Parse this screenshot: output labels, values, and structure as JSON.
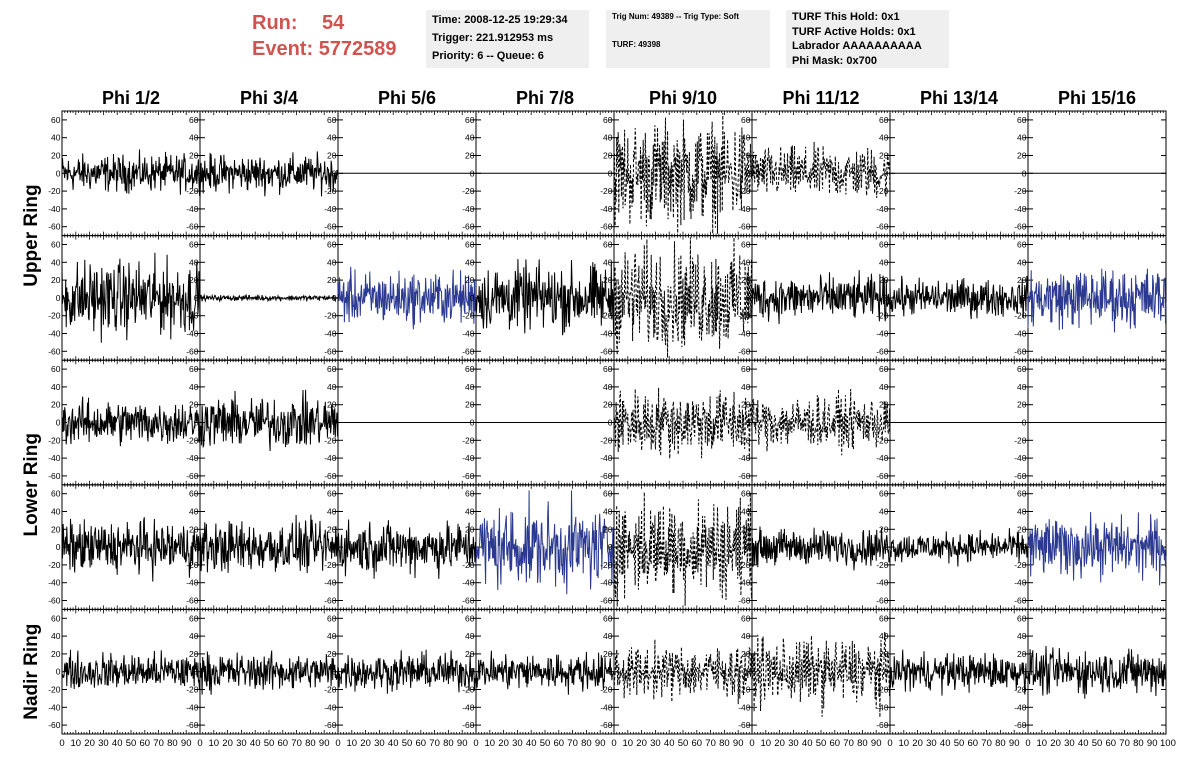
{
  "header": {
    "run_label": "Run:",
    "run_value": "54",
    "event_label": "Event:",
    "event_value": "5772589",
    "box1": [
      "Time: 2008-12-25 19:29:34",
      "Trigger: 221.912953 ms",
      "Priority: 6 -- Queue: 6"
    ],
    "box2_line1": "Trig Num: 49389 -- Trig Type: Soft",
    "box2_line2": "TURF: 49398",
    "box3": [
      "TURF This Hold: 0x1",
      "TURF Active Holds: 0x1",
      "Labrador AAAAAAAAAA",
      "Phi Mask: 0x700"
    ]
  },
  "colors": {
    "black_trace": "#000000",
    "blue_trace": "#2b3990",
    "header_red": "#d0534f",
    "info_bg": "#efefef"
  },
  "chart_data": {
    "type": "line",
    "columns": [
      "Phi 1/2",
      "Phi 3/4",
      "Phi 5/6",
      "Phi 7/8",
      "Phi 9/10",
      "Phi 11/12",
      "Phi 13/14",
      "Phi 15/16"
    ],
    "ring_labels": [
      "Upper Ring",
      "Lower Ring",
      "Nadir Ring"
    ],
    "ylim": [
      -70,
      70
    ],
    "yticks": [
      -60,
      -40,
      -20,
      0,
      20,
      40,
      60
    ],
    "xlim": [
      0,
      100
    ],
    "xticks": [
      0,
      10,
      20,
      30,
      40,
      50,
      60,
      70,
      80,
      90
    ],
    "last_xtick": "100",
    "panels_by_row": [
      [
        {
          "amp": 10,
          "style": "solid"
        },
        {
          "amp": 10,
          "style": "solid"
        },
        {
          "amp": 0,
          "style": "flat"
        },
        {
          "amp": 0,
          "style": "flat"
        },
        {
          "amp": 28,
          "style": "dashed"
        },
        {
          "amp": 14,
          "style": "dashed"
        },
        {
          "amp": 0,
          "style": "flat"
        },
        {
          "amp": 0,
          "style": "flat"
        }
      ],
      [
        {
          "amp": 20,
          "style": "solid"
        },
        {
          "amp": 1.5,
          "style": "solid"
        },
        {
          "amp": 14,
          "style": "blue"
        },
        {
          "amp": 18,
          "style": "solid"
        },
        {
          "amp": 28,
          "style": "dashed"
        },
        {
          "amp": 12,
          "style": "solid"
        },
        {
          "amp": 10,
          "style": "solid"
        },
        {
          "amp": 16,
          "style": "blue"
        }
      ],
      [
        {
          "amp": 12,
          "style": "solid"
        },
        {
          "amp": 14,
          "style": "solid"
        },
        {
          "amp": 0,
          "style": "flat"
        },
        {
          "amp": 0,
          "style": "flat"
        },
        {
          "amp": 18,
          "style": "dashed"
        },
        {
          "amp": 14,
          "style": "dashed"
        },
        {
          "amp": 0,
          "style": "flat"
        },
        {
          "amp": 0,
          "style": "flat"
        }
      ],
      [
        {
          "amp": 14,
          "style": "solid"
        },
        {
          "amp": 14,
          "style": "solid"
        },
        {
          "amp": 14,
          "style": "solid"
        },
        {
          "amp": 22,
          "style": "blue"
        },
        {
          "amp": 26,
          "style": "dashed"
        },
        {
          "amp": 10,
          "style": "solid"
        },
        {
          "amp": 8,
          "style": "solid"
        },
        {
          "amp": 16,
          "style": "blue"
        }
      ],
      [
        {
          "amp": 10,
          "style": "solid"
        },
        {
          "amp": 10,
          "style": "solid"
        },
        {
          "amp": 10,
          "style": "solid"
        },
        {
          "amp": 10,
          "style": "solid"
        },
        {
          "amp": 14,
          "style": "dashed"
        },
        {
          "amp": 18,
          "style": "dashed"
        },
        {
          "amp": 10,
          "style": "solid"
        },
        {
          "amp": 12,
          "style": "solid"
        }
      ]
    ]
  }
}
